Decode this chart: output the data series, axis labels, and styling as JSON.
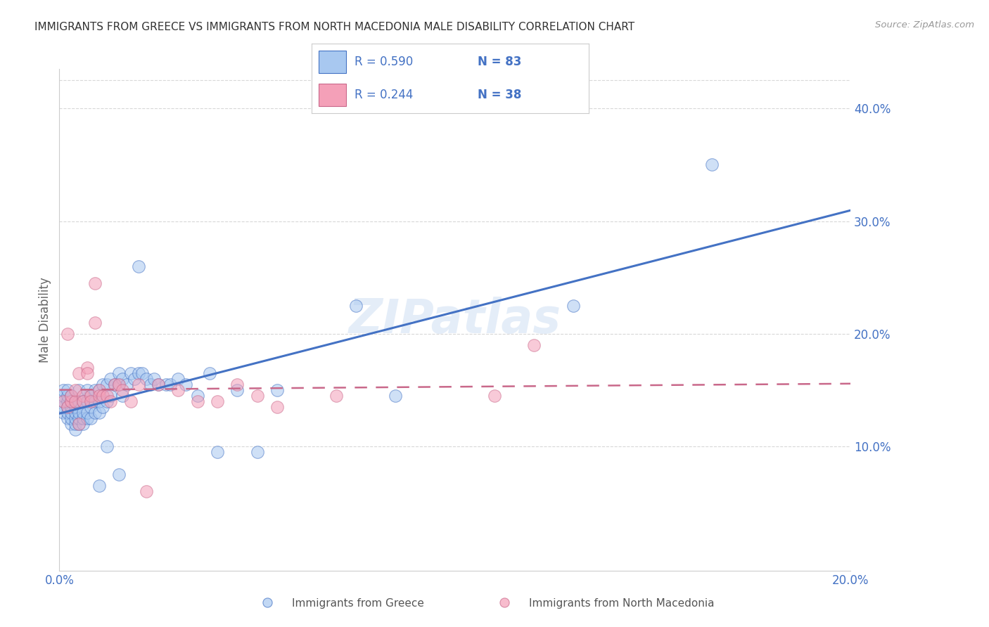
{
  "title": "IMMIGRANTS FROM GREECE VS IMMIGRANTS FROM NORTH MACEDONIA MALE DISABILITY CORRELATION CHART",
  "source": "Source: ZipAtlas.com",
  "ylabel_label": "Male Disability",
  "legend_label1": "Immigrants from Greece",
  "legend_label2": "Immigrants from North Macedonia",
  "R1": 0.59,
  "N1": 83,
  "R2": 0.244,
  "N2": 38,
  "xmin": 0.0,
  "xmax": 0.2,
  "ymin": -0.01,
  "ymax": 0.435,
  "color_greece": "#A8C8F0",
  "color_macedonia": "#F4A0B8",
  "color_greece_line": "#4472C4",
  "color_macedonia_line": "#C9688A",
  "watermark_text": "ZIPatlas",
  "greece_x": [
    0.001,
    0.001,
    0.001,
    0.001,
    0.001,
    0.002,
    0.002,
    0.002,
    0.002,
    0.002,
    0.002,
    0.003,
    0.003,
    0.003,
    0.003,
    0.003,
    0.003,
    0.004,
    0.004,
    0.004,
    0.004,
    0.004,
    0.004,
    0.005,
    0.005,
    0.005,
    0.005,
    0.005,
    0.006,
    0.006,
    0.006,
    0.006,
    0.007,
    0.007,
    0.007,
    0.007,
    0.008,
    0.008,
    0.008,
    0.009,
    0.009,
    0.009,
    0.01,
    0.01,
    0.01,
    0.011,
    0.011,
    0.012,
    0.012,
    0.013,
    0.013,
    0.014,
    0.015,
    0.015,
    0.016,
    0.016,
    0.017,
    0.018,
    0.019,
    0.02,
    0.021,
    0.022,
    0.023,
    0.024,
    0.025,
    0.027,
    0.028,
    0.03,
    0.032,
    0.035,
    0.038,
    0.04,
    0.045,
    0.05,
    0.055,
    0.075,
    0.085,
    0.13,
    0.165,
    0.01,
    0.012,
    0.015,
    0.02
  ],
  "greece_y": [
    0.13,
    0.135,
    0.14,
    0.145,
    0.15,
    0.125,
    0.13,
    0.135,
    0.14,
    0.145,
    0.15,
    0.12,
    0.125,
    0.13,
    0.135,
    0.14,
    0.145,
    0.115,
    0.12,
    0.125,
    0.13,
    0.135,
    0.14,
    0.12,
    0.125,
    0.13,
    0.14,
    0.15,
    0.12,
    0.125,
    0.13,
    0.14,
    0.125,
    0.13,
    0.14,
    0.15,
    0.125,
    0.135,
    0.145,
    0.13,
    0.14,
    0.15,
    0.13,
    0.14,
    0.15,
    0.135,
    0.155,
    0.14,
    0.155,
    0.145,
    0.16,
    0.155,
    0.155,
    0.165,
    0.145,
    0.16,
    0.155,
    0.165,
    0.16,
    0.165,
    0.165,
    0.16,
    0.155,
    0.16,
    0.155,
    0.155,
    0.155,
    0.16,
    0.155,
    0.145,
    0.165,
    0.095,
    0.15,
    0.095,
    0.15,
    0.225,
    0.145,
    0.225,
    0.35,
    0.065,
    0.1,
    0.075,
    0.26
  ],
  "macedonia_x": [
    0.001,
    0.002,
    0.002,
    0.003,
    0.003,
    0.004,
    0.004,
    0.005,
    0.005,
    0.006,
    0.006,
    0.007,
    0.007,
    0.008,
    0.008,
    0.009,
    0.009,
    0.01,
    0.01,
    0.011,
    0.012,
    0.013,
    0.014,
    0.015,
    0.016,
    0.018,
    0.02,
    0.022,
    0.025,
    0.03,
    0.035,
    0.04,
    0.045,
    0.05,
    0.055,
    0.07,
    0.11,
    0.12
  ],
  "macedonia_y": [
    0.14,
    0.135,
    0.2,
    0.14,
    0.145,
    0.14,
    0.15,
    0.165,
    0.12,
    0.145,
    0.14,
    0.17,
    0.165,
    0.145,
    0.14,
    0.245,
    0.21,
    0.15,
    0.145,
    0.145,
    0.145,
    0.14,
    0.155,
    0.155,
    0.15,
    0.14,
    0.155,
    0.06,
    0.155,
    0.15,
    0.14,
    0.14,
    0.155,
    0.145,
    0.135,
    0.145,
    0.145,
    0.19
  ]
}
